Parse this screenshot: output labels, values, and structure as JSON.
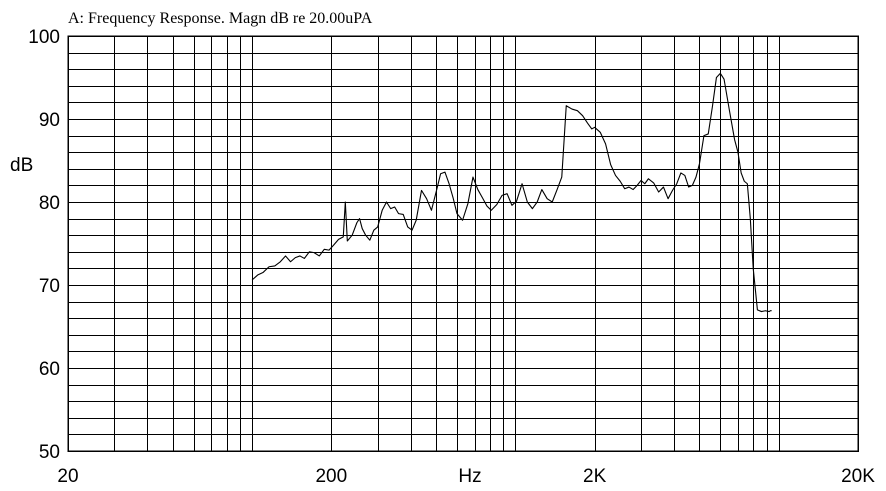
{
  "chart_data": {
    "type": "line",
    "title": "A: Frequency Response. Magn dB re 20.00uPA",
    "xlabel": "Hz",
    "ylabel": "dB",
    "x_scale": "log",
    "xlim": [
      20,
      20000
    ],
    "ylim": [
      50,
      100
    ],
    "x_tick_labels": [
      "20",
      "200",
      "2K",
      "20K"
    ],
    "y_tick_labels": [
      "100",
      "90",
      "80",
      "70",
      "60",
      "50"
    ],
    "grid": true,
    "series": [
      {
        "x": [
          100,
          105,
          110,
          116,
          122,
          128,
          134,
          140,
          146,
          152,
          158,
          165,
          172,
          180,
          188,
          196,
          204,
          213,
          222,
          226,
          230,
          240,
          250,
          256,
          262,
          270,
          280,
          290,
          300,
          312,
          324,
          336,
          348,
          360,
          375,
          390,
          405,
          420,
          440,
          460,
          480,
          500,
          520,
          540,
          560,
          580,
          600,
          630,
          660,
          690,
          720,
          750,
          780,
          810,
          850,
          890,
          930,
          970,
          1010,
          1060,
          1110,
          1160,
          1210,
          1260,
          1320,
          1380,
          1440,
          1500,
          1560,
          1640,
          1720,
          1800,
          1880,
          1950,
          2000,
          2100,
          2200,
          2300,
          2400,
          2500,
          2600,
          2700,
          2800,
          2900,
          3000,
          3100,
          3200,
          3350,
          3500,
          3650,
          3800,
          3950,
          4100,
          4250,
          4400,
          4550,
          4700,
          4850,
          5000,
          5200,
          5400,
          5600,
          5800,
          6000,
          6200,
          6500,
          6800,
          7000,
          7200,
          7400,
          7600,
          7800,
          8000,
          8300,
          8600,
          8900,
          9200,
          9300,
          9350,
          9400
        ],
        "y": [
          70.6,
          71.2,
          71.5,
          72.2,
          72.3,
          72.8,
          73.5,
          72.8,
          73.3,
          73.5,
          73.2,
          74.0,
          73.9,
          73.5,
          74.3,
          74.2,
          74.8,
          75.5,
          75.8,
          80.0,
          75.3,
          76.0,
          77.5,
          78.0,
          76.8,
          76.0,
          75.4,
          76.6,
          77.0,
          79.0,
          80.0,
          79.2,
          79.4,
          78.6,
          78.5,
          77.0,
          76.6,
          77.8,
          81.4,
          80.4,
          79.0,
          81.2,
          83.4,
          83.6,
          82.2,
          80.5,
          78.6,
          77.8,
          79.8,
          83.0,
          81.5,
          80.5,
          79.5,
          79.0,
          79.7,
          80.8,
          81.0,
          79.6,
          80.1,
          82.2,
          80.0,
          79.2,
          80.0,
          81.5,
          80.4,
          80.0,
          81.5,
          83.0,
          91.6,
          91.2,
          91.0,
          90.4,
          89.5,
          88.8,
          89.0,
          88.4,
          87.0,
          84.5,
          83.2,
          82.5,
          81.6,
          81.8,
          81.5,
          82.0,
          82.6,
          82.2,
          82.8,
          82.3,
          81.2,
          81.8,
          80.4,
          81.4,
          82.2,
          83.5,
          83.2,
          81.8,
          82.0,
          83.0,
          84.6,
          88.0,
          88.2,
          91.5,
          95.0,
          95.5,
          94.8,
          91.0,
          87.5,
          86.0,
          83.5,
          82.5,
          82.2,
          78.0,
          72.0,
          67.0,
          66.8,
          66.9,
          66.8,
          66.9,
          66.9,
          66.9
        ]
      }
    ]
  }
}
